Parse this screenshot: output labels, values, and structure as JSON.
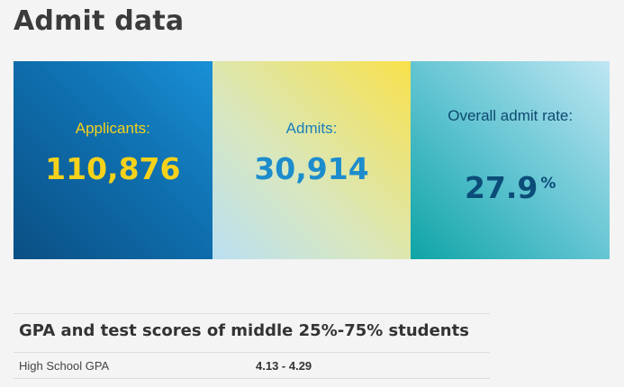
{
  "page": {
    "title": "Admit data"
  },
  "tiles": [
    {
      "label": "Applicants:",
      "value": "110,876"
    },
    {
      "label": "Admits:",
      "value": "30,914"
    },
    {
      "label": "Overall admit rate:",
      "value": "27.9",
      "unit": "%"
    }
  ],
  "scores": {
    "heading": "GPA and test scores of middle 25%-75% students",
    "rows": [
      {
        "label": "High School GPA",
        "value": "4.13 - 4.29"
      }
    ]
  },
  "colors": {
    "applicants_text": "#f6d21b",
    "admits_text": "#1c8ccc",
    "rate_text": "#0b4d78",
    "applicants_bg": "#0f6fae",
    "admits_bg": "#f0e36a",
    "rate_bg": "#5cc2cf"
  }
}
